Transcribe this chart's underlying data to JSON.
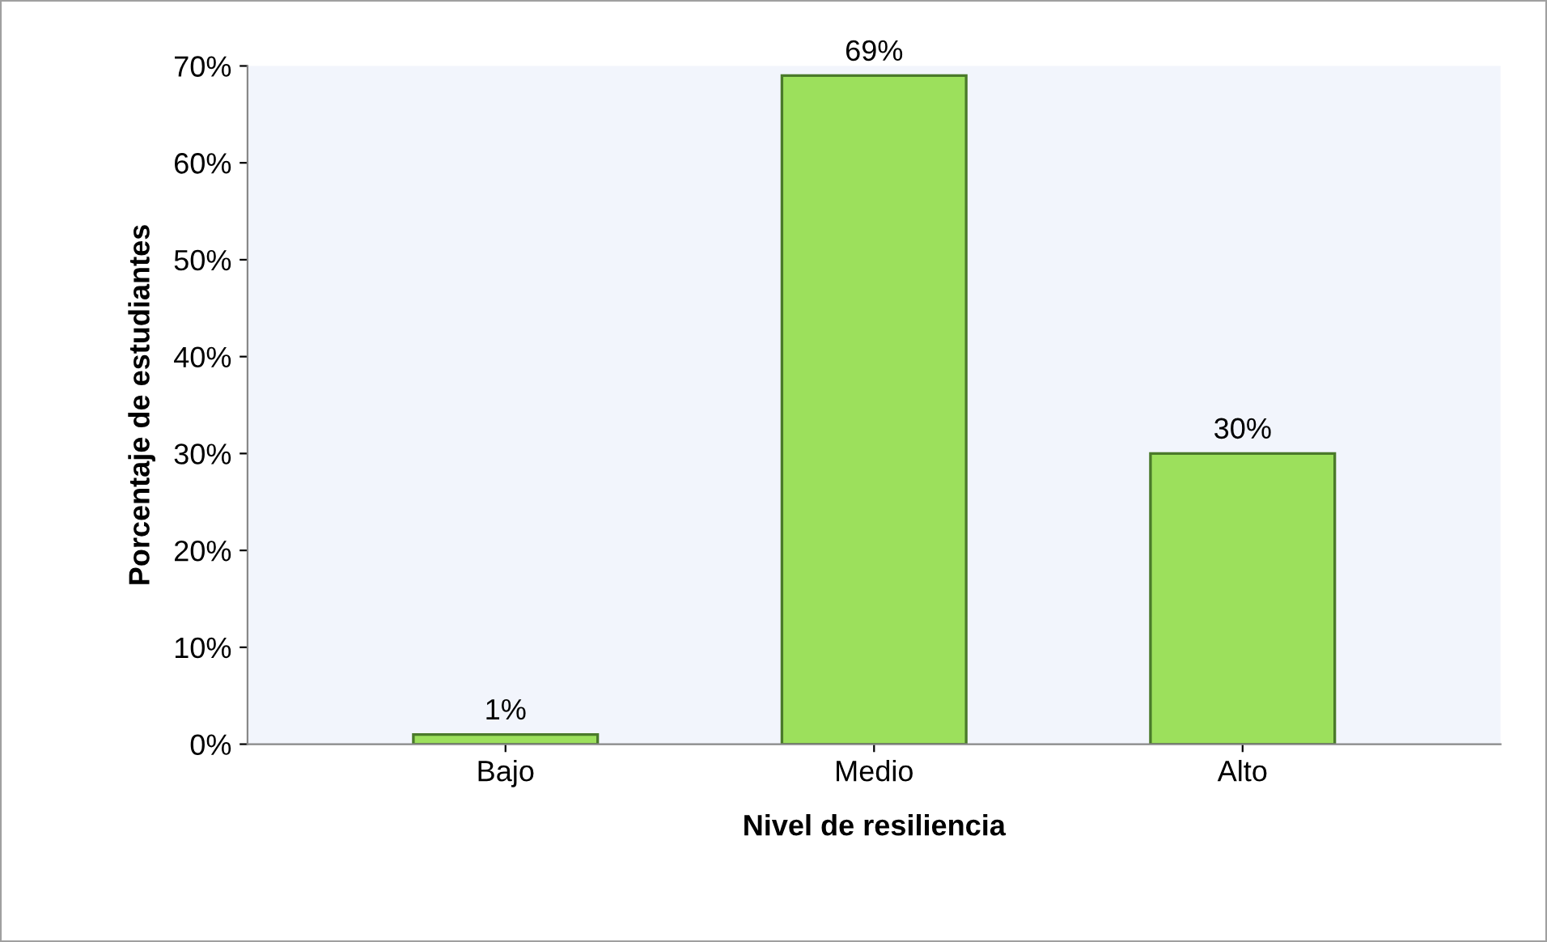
{
  "chart_data": {
    "type": "bar",
    "xlabel": "Nivel de resiliencia",
    "ylabel": "Porcentaje de estudiantes",
    "categories": [
      "Bajo",
      "Medio",
      "Alto"
    ],
    "values": [
      1,
      69,
      30
    ],
    "color": "#9ce05c",
    "value_labels": [
      "1%",
      "69%",
      "30%"
    ],
    "ylim": [
      0,
      70
    ],
    "yticks": [
      {
        "value": 0,
        "label": "0%"
      },
      {
        "value": 10,
        "label": "10%"
      },
      {
        "value": 20,
        "label": "20%"
      },
      {
        "value": 30,
        "label": "30%"
      },
      {
        "value": 40,
        "label": "40%"
      },
      {
        "value": 50,
        "label": "50%"
      },
      {
        "value": 60,
        "label": "60%"
      },
      {
        "value": 70,
        "label": "70%"
      }
    ],
    "grid": false
  }
}
